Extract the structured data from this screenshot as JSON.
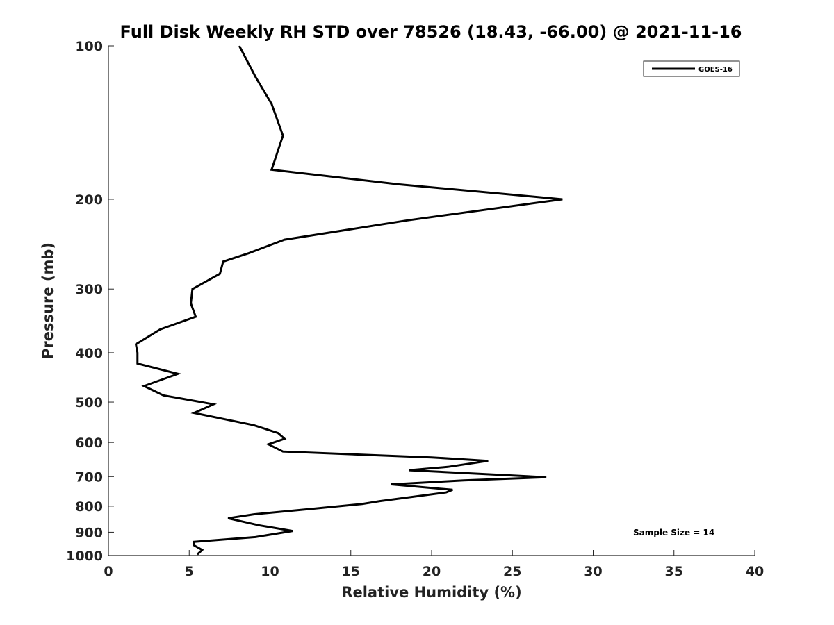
{
  "chart_data": {
    "type": "line",
    "title": "Full Disk Weekly RH STD over 78526 (18.43, -66.00) @ 2021-11-16",
    "xlabel": "Relative Humidity (%)",
    "ylabel": "Pressure (mb)",
    "xlim": [
      0,
      40
    ],
    "ylim": [
      100,
      1000
    ],
    "y_scale": "log",
    "y_reversed": true,
    "x_ticks": [
      0,
      5,
      10,
      15,
      20,
      25,
      30,
      35,
      40
    ],
    "y_ticks": [
      100,
      200,
      300,
      400,
      500,
      600,
      700,
      800,
      900,
      1000
    ],
    "legend_position": "top-right",
    "annotation": "Sample Size = 14",
    "series": [
      {
        "name": "GOES-16",
        "color": "#000000",
        "points": [
          [
            8.1,
            100
          ],
          [
            9.1,
            115
          ],
          [
            10.1,
            130
          ],
          [
            10.8,
            150
          ],
          [
            10.1,
            175
          ],
          [
            18.0,
            187
          ],
          [
            28.1,
            200
          ],
          [
            18.5,
            220
          ],
          [
            10.9,
            240
          ],
          [
            8.7,
            255
          ],
          [
            7.1,
            265
          ],
          [
            6.9,
            280
          ],
          [
            5.2,
            300
          ],
          [
            5.1,
            320
          ],
          [
            5.4,
            340
          ],
          [
            3.2,
            360
          ],
          [
            1.7,
            385
          ],
          [
            1.8,
            400
          ],
          [
            1.8,
            420
          ],
          [
            4.3,
            440
          ],
          [
            2.2,
            465
          ],
          [
            3.4,
            485
          ],
          [
            6.5,
            505
          ],
          [
            5.3,
            525
          ],
          [
            9.0,
            555
          ],
          [
            10.5,
            575
          ],
          [
            10.9,
            590
          ],
          [
            9.9,
            605
          ],
          [
            10.8,
            625
          ],
          [
            20.0,
            642
          ],
          [
            23.5,
            652
          ],
          [
            21.0,
            670
          ],
          [
            18.6,
            680
          ],
          [
            22.5,
            690
          ],
          [
            27.1,
            702
          ],
          [
            22.0,
            712
          ],
          [
            17.5,
            725
          ],
          [
            21.3,
            743
          ],
          [
            20.9,
            752
          ],
          [
            16.8,
            782
          ],
          [
            15.7,
            792
          ],
          [
            12.6,
            810
          ],
          [
            9.0,
            830
          ],
          [
            7.4,
            845
          ],
          [
            9.3,
            872
          ],
          [
            11.4,
            895
          ],
          [
            9.1,
            920
          ],
          [
            5.3,
            940
          ],
          [
            5.3,
            955
          ],
          [
            5.8,
            975
          ],
          [
            5.5,
            995
          ]
        ]
      }
    ]
  }
}
